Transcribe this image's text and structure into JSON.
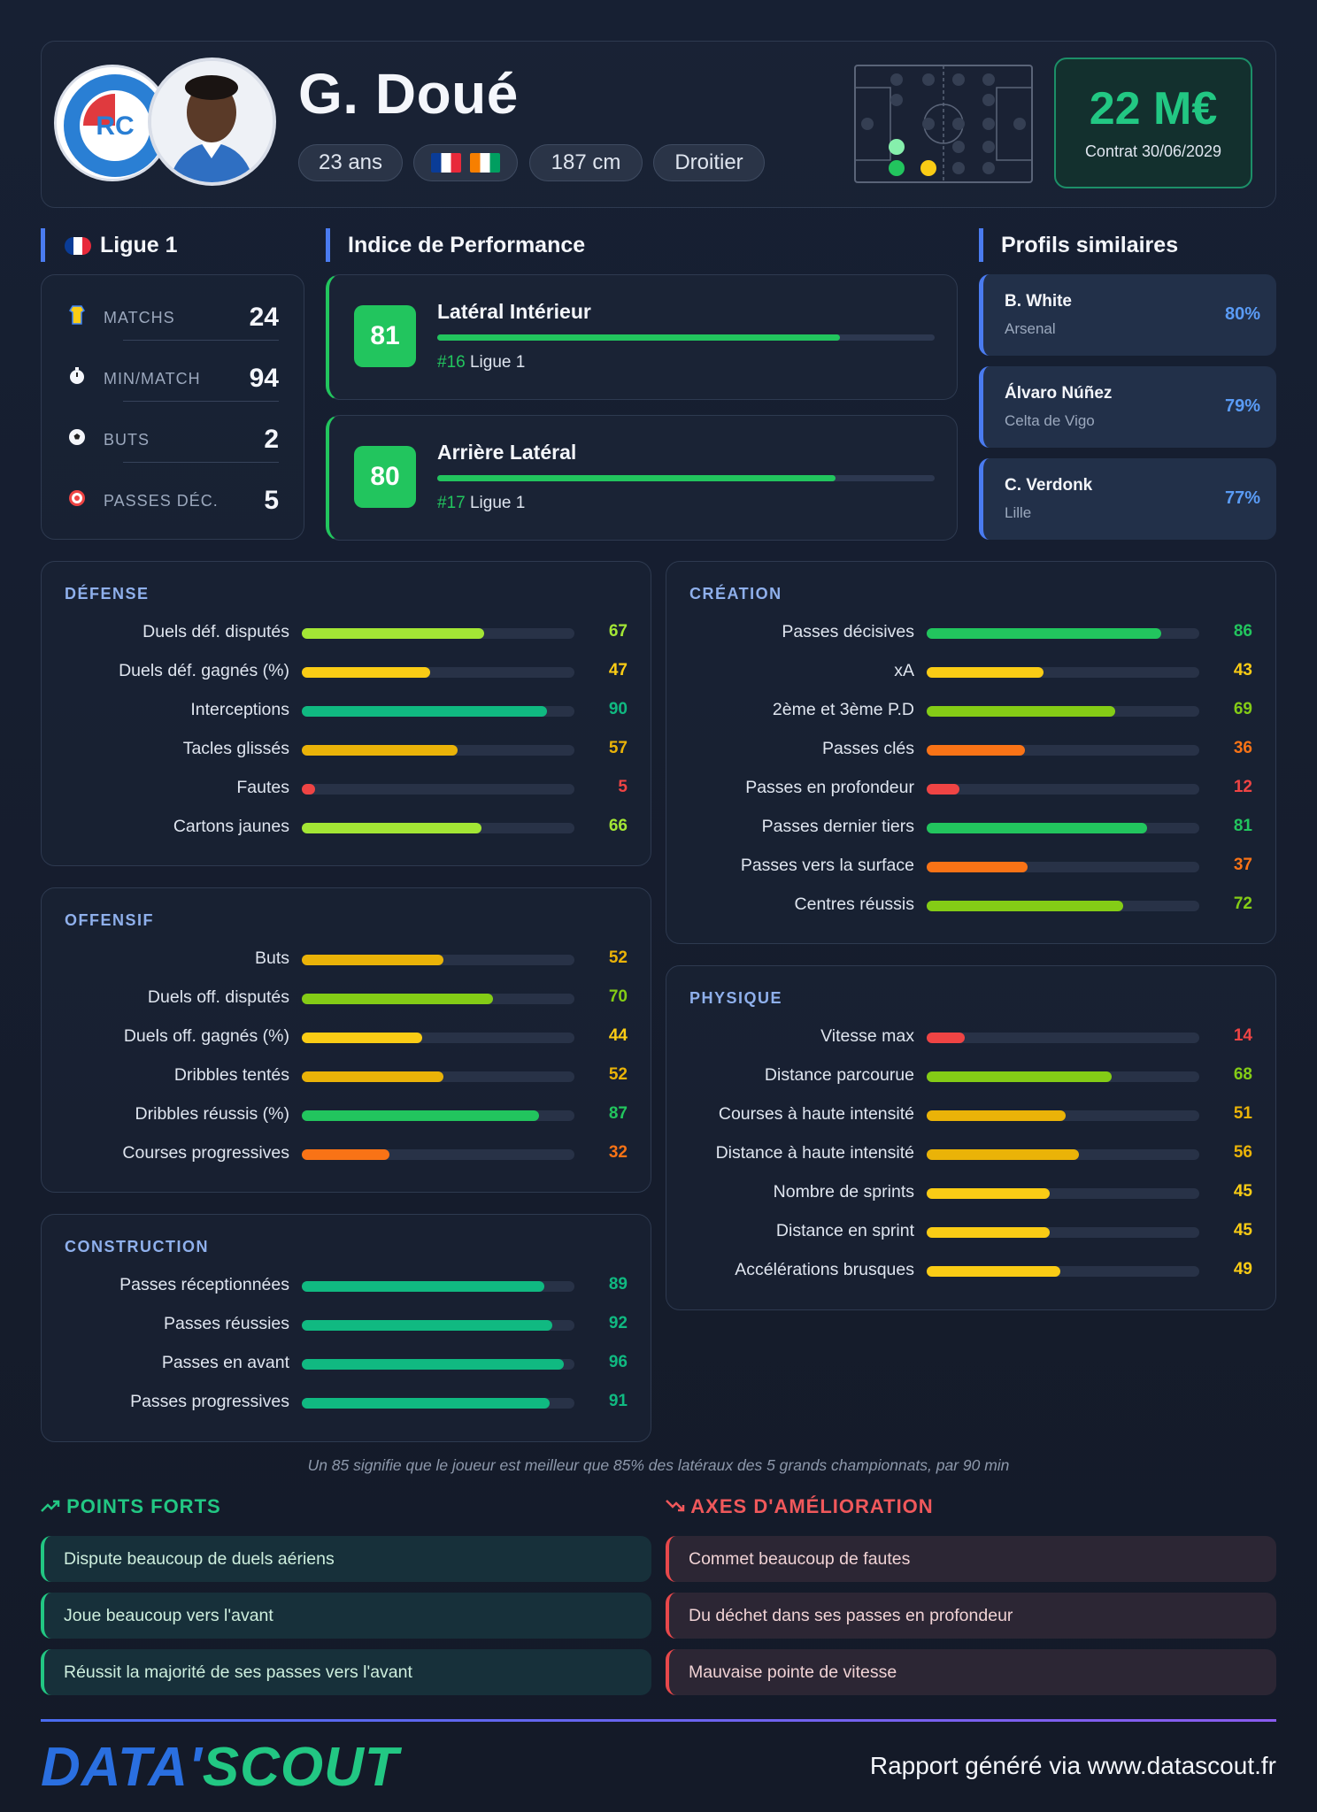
{
  "player": {
    "name": "G. Doué",
    "age": "23 ans",
    "height": "187 cm",
    "foot": "Droitier",
    "nationalities": [
      "France",
      "Côte d'Ivoire"
    ],
    "club_logo_text": "RACING CLUB DE STRASBOURG ALSACE"
  },
  "valuation": {
    "amount": "22 M€",
    "contract": "Contrat 30/06/2029"
  },
  "league": {
    "name": "Ligue 1",
    "stats": [
      {
        "icon": "shirt-icon",
        "label": "MATCHS",
        "value": "24"
      },
      {
        "icon": "stopwatch-icon",
        "label": "MIN/MATCH",
        "value": "94"
      },
      {
        "icon": "ball-icon",
        "label": "BUTS",
        "value": "2"
      },
      {
        "icon": "target-icon",
        "label": "PASSES DÉC.",
        "value": "5"
      }
    ]
  },
  "performance": {
    "title": "Indice de Performance",
    "roles": [
      {
        "score": "81",
        "name": "Latéral Intérieur",
        "rank": "#16",
        "league": "Ligue 1",
        "progress": 0.81
      },
      {
        "score": "80",
        "name": "Arrière Latéral",
        "rank": "#17",
        "league": "Ligue 1",
        "progress": 0.8
      }
    ]
  },
  "similar": {
    "title": "Profils similaires",
    "players": [
      {
        "name": "B. White",
        "club": "Arsenal",
        "pct": "80%"
      },
      {
        "name": "Álvaro Núñez",
        "club": "Celta de Vigo",
        "pct": "79%"
      },
      {
        "name": "C. Verdonk",
        "club": "Lille",
        "pct": "77%"
      }
    ]
  },
  "metrics": {
    "defense": {
      "title": "DÉFENSE",
      "items": [
        {
          "label": "Duels déf. disputés",
          "value": 67
        },
        {
          "label": "Duels déf. gagnés (%)",
          "value": 47
        },
        {
          "label": "Interceptions",
          "value": 90
        },
        {
          "label": "Tacles glissés",
          "value": 57
        },
        {
          "label": "Fautes",
          "value": 5
        },
        {
          "label": "Cartons jaunes",
          "value": 66
        }
      ]
    },
    "offense": {
      "title": "OFFENSIF",
      "items": [
        {
          "label": "Buts",
          "value": 52
        },
        {
          "label": "Duels off. disputés",
          "value": 70
        },
        {
          "label": "Duels off. gagnés (%)",
          "value": 44
        },
        {
          "label": "Dribbles tentés",
          "value": 52
        },
        {
          "label": "Dribbles réussis (%)",
          "value": 87
        },
        {
          "label": "Courses progressives",
          "value": 32
        }
      ]
    },
    "construction": {
      "title": "CONSTRUCTION",
      "items": [
        {
          "label": "Passes réceptionnées",
          "value": 89
        },
        {
          "label": "Passes réussies",
          "value": 92
        },
        {
          "label": "Passes en avant",
          "value": 96
        },
        {
          "label": "Passes progressives",
          "value": 91
        }
      ]
    },
    "creation": {
      "title": "CRÉATION",
      "items": [
        {
          "label": "Passes décisives",
          "value": 86
        },
        {
          "label": "xA",
          "value": 43
        },
        {
          "label": "2ème et 3ème P.D",
          "value": 69
        },
        {
          "label": "Passes clés",
          "value": 36
        },
        {
          "label": "Passes en profondeur",
          "value": 12
        },
        {
          "label": "Passes dernier tiers",
          "value": 81
        },
        {
          "label": "Passes vers la surface",
          "value": 37
        },
        {
          "label": "Centres réussis",
          "value": 72
        }
      ]
    },
    "physique": {
      "title": "PHYSIQUE",
      "items": [
        {
          "label": "Vitesse max",
          "value": 14
        },
        {
          "label": "Distance parcourue",
          "value": 68
        },
        {
          "label": "Courses à haute intensité",
          "value": 51
        },
        {
          "label": "Distance à haute intensité",
          "value": 56
        },
        {
          "label": "Nombre de sprints",
          "value": 45
        },
        {
          "label": "Distance en sprint",
          "value": 45
        },
        {
          "label": "Accélérations brusques",
          "value": 49
        }
      ]
    }
  },
  "footnote": "Un 85 signifie que le joueur est meilleur que 85% des latéraux des 5 grands championnats, par 90 min",
  "strengths": {
    "title": "POINTS FORTS",
    "items": [
      "Dispute beaucoup de duels aériens",
      "Joue beaucoup vers l'avant",
      "Réussit la majorité de ses passes vers l'avant"
    ]
  },
  "weaknesses": {
    "title": "AXES D'AMÉLIORATION",
    "items": [
      "Commet beaucoup de fautes",
      "Du déchet dans ses passes en profondeur",
      "Mauvaise pointe de vitesse"
    ]
  },
  "footer": {
    "brand_part1": "DATA'",
    "brand_part2": "SCOUT",
    "report_text": "Rapport généré via www.datascout.fr"
  },
  "colors": {
    "accent": "#4a7bf0",
    "good": "#22c783",
    "bad": "#e8484b",
    "scale": [
      "#ef4444",
      "#f97316",
      "#facc15",
      "#eab308",
      "#a3e635",
      "#84cc16",
      "#22c55e",
      "#10b981"
    ]
  }
}
